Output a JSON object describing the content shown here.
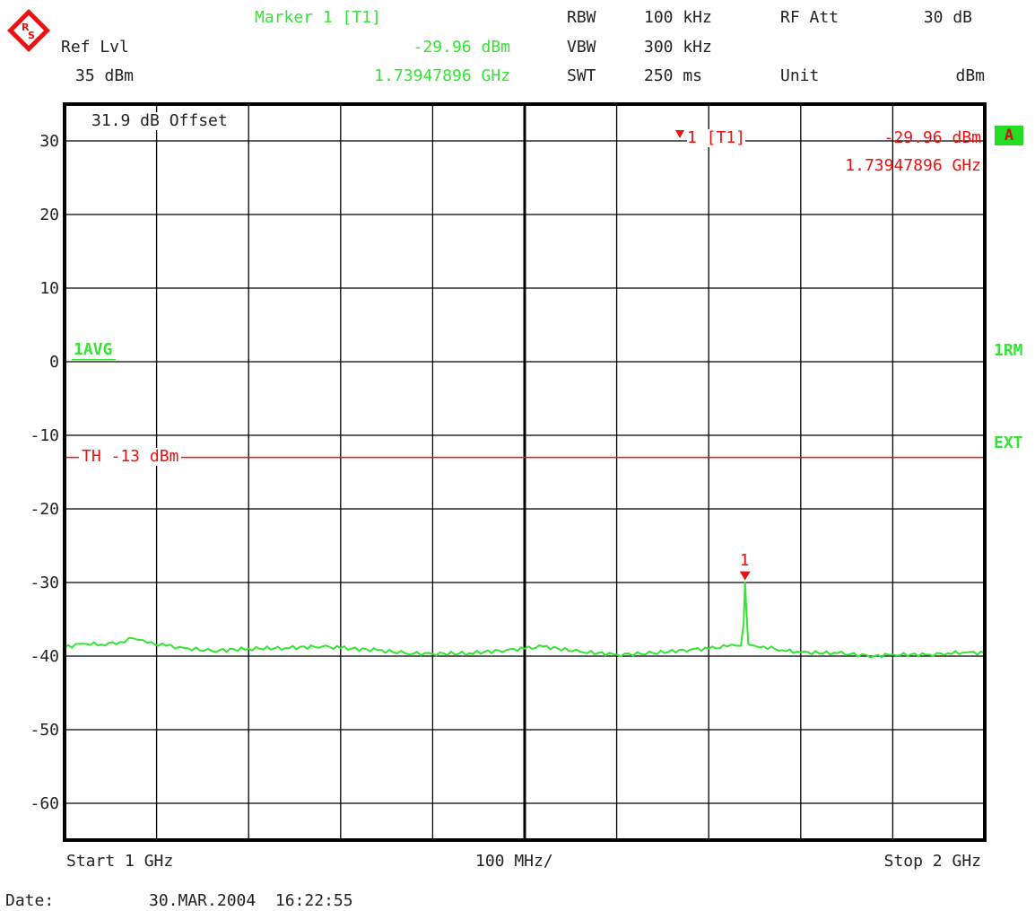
{
  "header": {
    "marker_title": "Marker 1 [T1]",
    "marker_level": "-29.96 dBm",
    "marker_freq": "1.73947896 GHz",
    "ref_label": "Ref Lvl",
    "ref_value": "35 dBm",
    "rbw_label": "RBW",
    "rbw_value": "100 kHz",
    "vbw_label": "VBW",
    "vbw_value": "300 kHz",
    "swt_label": "SWT",
    "swt_value": "250 ms",
    "rfatt_label": "RF Att",
    "rfatt_value": "30 dB",
    "unit_label": "Unit",
    "unit_value": "dBm"
  },
  "annotations": {
    "offset": "31.9 dB Offset",
    "trace_mode": "1AVG",
    "right_1": "A",
    "right_2": "1RM",
    "right_3": "EXT",
    "marker_readout_label": "1 [T1]",
    "marker_readout_level": "-29.96 dBm",
    "marker_readout_freq": "1.73947896 GHz",
    "marker_number": "1"
  },
  "footer": {
    "start": "Start 1 GHz",
    "span_per_div": "100 MHz/",
    "stop": "Stop 2 GHz",
    "date_label": "Date:",
    "date_value": "30.MAR.2004  16:22:55"
  },
  "colors": {
    "trace": "#33e433",
    "marker": "#ee1111",
    "grid": "#000000"
  },
  "chart_data": {
    "type": "line",
    "x_unit": "GHz",
    "y_unit": "dBm",
    "xlim": [
      1.0,
      2.0
    ],
    "ylim": [
      -65,
      35
    ],
    "y_ticks": [
      30,
      20,
      10,
      0,
      -10,
      -20,
      -30,
      -40,
      -50,
      -60
    ],
    "y_tick_labels": [
      "30",
      "20",
      "10",
      "0",
      "-10",
      "-20",
      "-30",
      "-40",
      "-50",
      "-60"
    ],
    "threshold": {
      "label": "TH -13 dBm",
      "value": -13
    },
    "marker": {
      "x": 1.73947896,
      "y": -29.96
    },
    "series": [
      {
        "x": [
          1.0,
          1.02,
          1.04,
          1.06,
          1.075,
          1.09,
          1.11,
          1.13,
          1.16,
          1.2,
          1.24,
          1.28,
          1.3,
          1.34,
          1.37,
          1.4,
          1.44,
          1.48,
          1.5,
          1.52,
          1.56,
          1.6,
          1.64,
          1.68,
          1.7,
          1.72,
          1.73,
          1.735,
          1.738,
          1.7395,
          1.741,
          1.743,
          1.745,
          1.75,
          1.76,
          1.78,
          1.8,
          1.84,
          1.88,
          1.9,
          1.94,
          1.96,
          1.98,
          2.0
        ],
        "y": [
          -38.8,
          -38.3,
          -38.4,
          -38.1,
          -37.6,
          -38.2,
          -38.6,
          -38.9,
          -39.3,
          -39.0,
          -38.9,
          -38.7,
          -38.9,
          -39.2,
          -39.6,
          -39.7,
          -39.6,
          -39.2,
          -39.0,
          -38.7,
          -39.4,
          -39.8,
          -39.6,
          -39.1,
          -39.0,
          -38.7,
          -38.6,
          -38.6,
          -35.5,
          -29.96,
          -34.0,
          -38.3,
          -38.5,
          -38.6,
          -38.7,
          -39.2,
          -39.5,
          -39.6,
          -40.0,
          -39.8,
          -39.8,
          -39.6,
          -39.5,
          -39.6
        ]
      }
    ]
  }
}
